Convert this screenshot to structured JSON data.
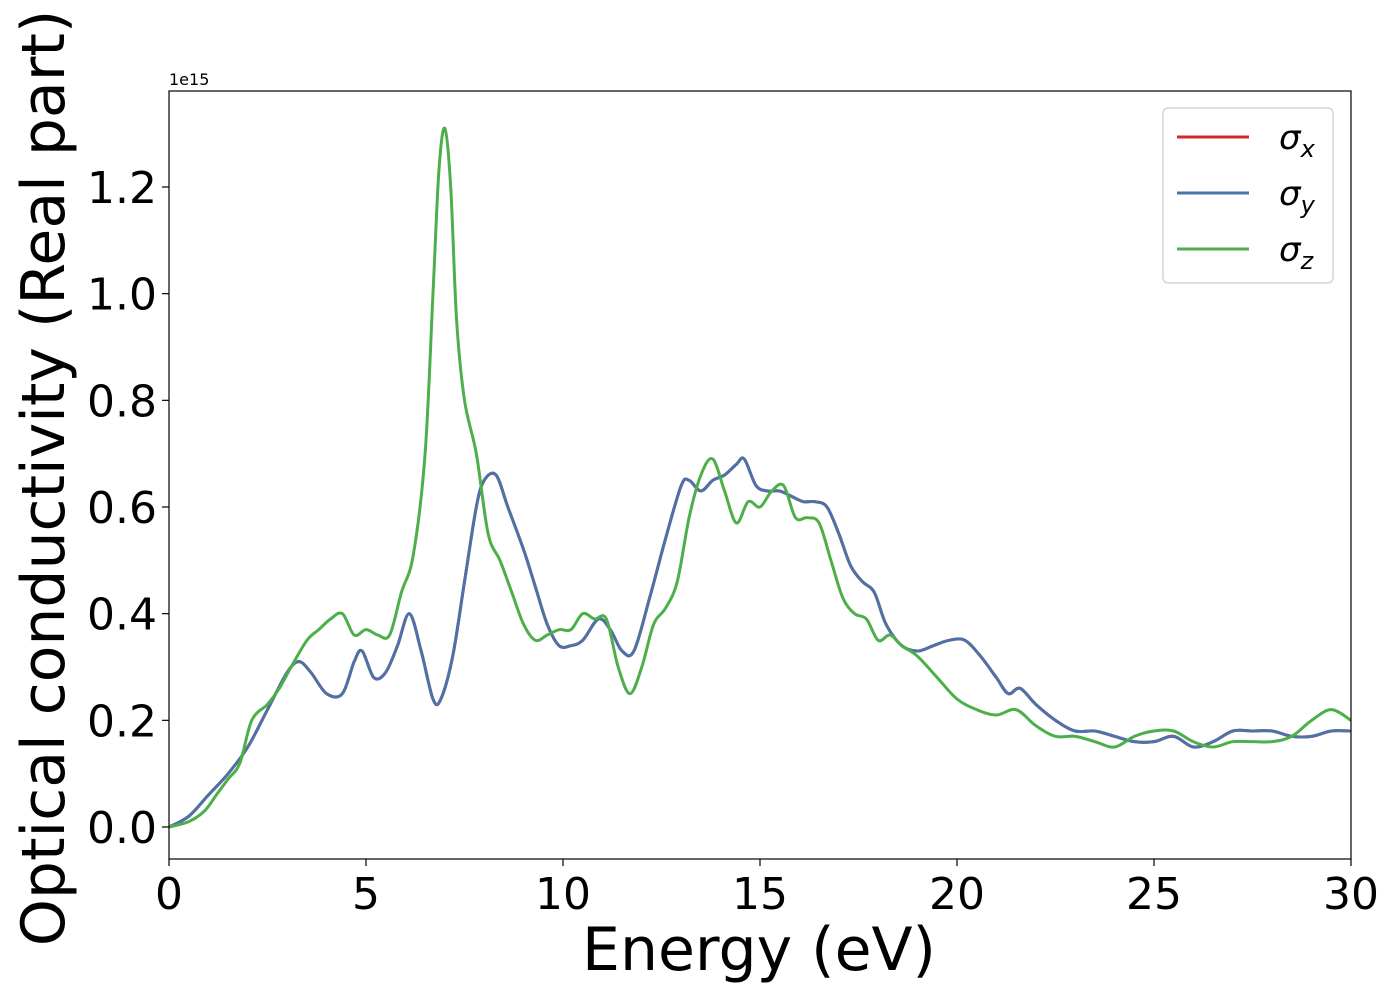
{
  "chart_data": {
    "type": "line",
    "title": "",
    "xlabel": "Energy (eV)",
    "ylabel": "Optical conductivity (Real part)",
    "y_offset_text": "1e15",
    "xlim": [
      0,
      30
    ],
    "ylim": [
      -0.06,
      1.38
    ],
    "x_ticks": [
      0,
      5,
      10,
      15,
      20,
      25,
      30
    ],
    "x_tick_labels": [
      "0",
      "5",
      "10",
      "15",
      "20",
      "25",
      "30"
    ],
    "y_ticks": [
      0.0,
      0.2,
      0.4,
      0.6,
      0.8,
      1.0,
      1.2
    ],
    "y_tick_labels": [
      "0.0",
      "0.2",
      "0.4",
      "0.6",
      "0.8",
      "1.0",
      "1.2"
    ],
    "grid": false,
    "legend_position": "top-right",
    "series": [
      {
        "name": "σ",
        "subscript": "x",
        "color": "#d62728",
        "x": [
          0,
          0.5,
          1.0,
          1.5,
          2.0,
          2.5,
          3.0,
          3.3,
          3.6,
          4.0,
          4.4,
          4.7,
          4.9,
          5.2,
          5.5,
          5.8,
          6.1,
          6.4,
          6.7,
          6.9,
          7.2,
          7.5,
          7.8,
          8.0,
          8.3,
          8.6,
          9.0,
          9.3,
          9.6,
          9.9,
          10.2,
          10.5,
          10.9,
          11.2,
          11.5,
          11.8,
          12.2,
          12.6,
          13.0,
          13.2,
          13.5,
          13.8,
          14.1,
          14.4,
          14.6,
          14.9,
          15.2,
          15.5,
          15.8,
          16.1,
          16.4,
          16.7,
          17.0,
          17.3,
          17.6,
          17.9,
          18.2,
          18.6,
          19.0,
          19.4,
          19.8,
          20.2,
          20.6,
          21.0,
          21.3,
          21.6,
          22.0,
          22.5,
          23.0,
          23.5,
          24.0,
          24.5,
          25.0,
          25.5,
          26.0,
          26.5,
          27.0,
          27.5,
          28.0,
          28.5,
          29.0,
          29.5,
          30.0
        ],
        "values": [
          0.0,
          0.02,
          0.06,
          0.1,
          0.15,
          0.22,
          0.29,
          0.31,
          0.29,
          0.25,
          0.25,
          0.31,
          0.33,
          0.28,
          0.29,
          0.34,
          0.4,
          0.33,
          0.24,
          0.24,
          0.32,
          0.46,
          0.6,
          0.65,
          0.66,
          0.6,
          0.52,
          0.45,
          0.38,
          0.34,
          0.34,
          0.35,
          0.39,
          0.37,
          0.33,
          0.33,
          0.43,
          0.54,
          0.64,
          0.65,
          0.63,
          0.65,
          0.66,
          0.68,
          0.69,
          0.64,
          0.63,
          0.63,
          0.62,
          0.61,
          0.61,
          0.6,
          0.55,
          0.49,
          0.46,
          0.44,
          0.38,
          0.34,
          0.33,
          0.34,
          0.35,
          0.35,
          0.32,
          0.28,
          0.25,
          0.26,
          0.23,
          0.2,
          0.18,
          0.18,
          0.17,
          0.16,
          0.16,
          0.17,
          0.15,
          0.16,
          0.18,
          0.18,
          0.18,
          0.17,
          0.17,
          0.18,
          0.18
        ]
      },
      {
        "name": "σ",
        "subscript": "y",
        "color": "#4c72a8",
        "x": [
          0,
          0.5,
          1.0,
          1.5,
          2.0,
          2.5,
          3.0,
          3.3,
          3.6,
          4.0,
          4.4,
          4.7,
          4.9,
          5.2,
          5.5,
          5.8,
          6.1,
          6.4,
          6.7,
          6.9,
          7.2,
          7.5,
          7.8,
          8.0,
          8.3,
          8.6,
          9.0,
          9.3,
          9.6,
          9.9,
          10.2,
          10.5,
          10.9,
          11.2,
          11.5,
          11.8,
          12.2,
          12.6,
          13.0,
          13.2,
          13.5,
          13.8,
          14.1,
          14.4,
          14.6,
          14.9,
          15.2,
          15.5,
          15.8,
          16.1,
          16.4,
          16.7,
          17.0,
          17.3,
          17.6,
          17.9,
          18.2,
          18.6,
          19.0,
          19.4,
          19.8,
          20.2,
          20.6,
          21.0,
          21.3,
          21.6,
          22.0,
          22.5,
          23.0,
          23.5,
          24.0,
          24.5,
          25.0,
          25.5,
          26.0,
          26.5,
          27.0,
          27.5,
          28.0,
          28.5,
          29.0,
          29.5,
          30.0
        ],
        "values": [
          0.0,
          0.02,
          0.06,
          0.1,
          0.15,
          0.22,
          0.29,
          0.31,
          0.29,
          0.25,
          0.25,
          0.31,
          0.33,
          0.28,
          0.29,
          0.34,
          0.4,
          0.33,
          0.24,
          0.24,
          0.32,
          0.46,
          0.6,
          0.65,
          0.66,
          0.6,
          0.52,
          0.45,
          0.38,
          0.34,
          0.34,
          0.35,
          0.39,
          0.37,
          0.33,
          0.33,
          0.43,
          0.54,
          0.64,
          0.65,
          0.63,
          0.65,
          0.66,
          0.68,
          0.69,
          0.64,
          0.63,
          0.63,
          0.62,
          0.61,
          0.61,
          0.6,
          0.55,
          0.49,
          0.46,
          0.44,
          0.38,
          0.34,
          0.33,
          0.34,
          0.35,
          0.35,
          0.32,
          0.28,
          0.25,
          0.26,
          0.23,
          0.2,
          0.18,
          0.18,
          0.17,
          0.16,
          0.16,
          0.17,
          0.15,
          0.16,
          0.18,
          0.18,
          0.18,
          0.17,
          0.17,
          0.18,
          0.18
        ]
      },
      {
        "name": "σ",
        "subscript": "z",
        "color": "#4daf4a",
        "x": [
          0,
          0.5,
          0.9,
          1.2,
          1.5,
          1.8,
          2.1,
          2.5,
          2.8,
          3.1,
          3.5,
          3.8,
          4.1,
          4.4,
          4.7,
          5.0,
          5.3,
          5.6,
          5.9,
          6.2,
          6.5,
          6.7,
          6.85,
          7.0,
          7.15,
          7.3,
          7.5,
          7.8,
          8.1,
          8.4,
          8.7,
          9.0,
          9.3,
          9.6,
          9.9,
          10.2,
          10.5,
          10.8,
          11.1,
          11.4,
          11.7,
          12.0,
          12.3,
          12.6,
          12.9,
          13.2,
          13.5,
          13.8,
          14.1,
          14.4,
          14.7,
          15.0,
          15.3,
          15.6,
          15.9,
          16.2,
          16.5,
          16.8,
          17.1,
          17.4,
          17.7,
          18.0,
          18.3,
          18.6,
          19.0,
          19.5,
          20.0,
          20.5,
          21.0,
          21.5,
          22.0,
          22.5,
          23.0,
          23.5,
          24.0,
          24.5,
          25.0,
          25.5,
          26.0,
          26.5,
          27.0,
          27.5,
          28.0,
          28.5,
          29.0,
          29.5,
          30.0
        ],
        "values": [
          0.0,
          0.01,
          0.03,
          0.06,
          0.09,
          0.12,
          0.2,
          0.23,
          0.26,
          0.3,
          0.35,
          0.37,
          0.39,
          0.4,
          0.36,
          0.37,
          0.36,
          0.36,
          0.44,
          0.51,
          0.7,
          1.0,
          1.23,
          1.31,
          1.2,
          0.95,
          0.8,
          0.7,
          0.55,
          0.5,
          0.44,
          0.38,
          0.35,
          0.36,
          0.37,
          0.37,
          0.4,
          0.39,
          0.39,
          0.3,
          0.25,
          0.3,
          0.38,
          0.41,
          0.46,
          0.58,
          0.66,
          0.69,
          0.63,
          0.57,
          0.61,
          0.6,
          0.63,
          0.64,
          0.58,
          0.58,
          0.57,
          0.5,
          0.43,
          0.4,
          0.39,
          0.35,
          0.36,
          0.34,
          0.32,
          0.28,
          0.24,
          0.22,
          0.21,
          0.22,
          0.19,
          0.17,
          0.17,
          0.16,
          0.15,
          0.17,
          0.18,
          0.18,
          0.16,
          0.15,
          0.16,
          0.16,
          0.16,
          0.17,
          0.2,
          0.22,
          0.2
        ]
      }
    ]
  }
}
